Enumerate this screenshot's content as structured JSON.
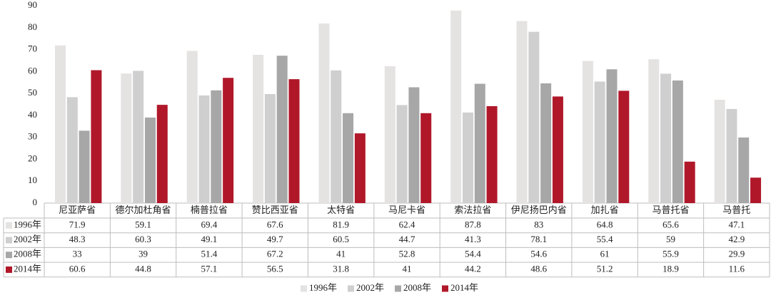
{
  "chart_data": {
    "type": "bar",
    "categories": [
      "尼亚萨省",
      "德尔加杜角省",
      "楠普拉省",
      "赞比西亚省",
      "太特省",
      "马尼卡省",
      "索法拉省",
      "伊尼扬巴内省",
      "加扎省",
      "马普托省",
      "马普托"
    ],
    "series": [
      {
        "name": "1996年",
        "color": "#e5e2e2",
        "values": [
          71.9,
          59.1,
          69.4,
          67.6,
          81.9,
          62.4,
          87.8,
          83,
          64.8,
          65.6,
          47.1
        ]
      },
      {
        "name": "2002年",
        "color": "#cfcfcf",
        "values": [
          48.3,
          60.3,
          49.1,
          49.7,
          60.5,
          44.7,
          41.3,
          78.1,
          55.4,
          59,
          42.9
        ]
      },
      {
        "name": "2008年",
        "color": "#a8a7a7",
        "values": [
          33,
          39,
          51.4,
          67.2,
          41,
          52.8,
          54.4,
          54.6,
          61,
          55.9,
          29.9
        ]
      },
      {
        "name": "2014年",
        "color": "#b0182a",
        "values": [
          60.6,
          44.8,
          57.1,
          56.5,
          31.8,
          41,
          44.2,
          48.6,
          51.2,
          18.9,
          11.6
        ]
      }
    ],
    "ylim": [
      0,
      90
    ],
    "yticks": [
      0,
      10,
      20,
      30,
      40,
      50,
      60,
      70,
      80,
      90
    ],
    "grid": false
  }
}
